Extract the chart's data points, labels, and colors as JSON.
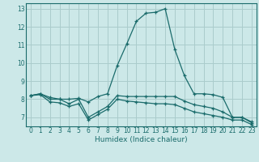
{
  "xlabel": "Humidex (Indice chaleur)",
  "bg_color": "#cce8e8",
  "grid_color": "#aacccc",
  "line_color": "#1a6b6b",
  "xlim": [
    -0.5,
    23.5
  ],
  "ylim": [
    6.5,
    13.3
  ],
  "yticks": [
    7,
    8,
    9,
    10,
    11,
    12,
    13
  ],
  "xticks": [
    0,
    1,
    2,
    3,
    4,
    5,
    6,
    7,
    8,
    9,
    10,
    11,
    12,
    13,
    14,
    15,
    16,
    17,
    18,
    19,
    20,
    21,
    22,
    23
  ],
  "line1_x": [
    0,
    1,
    2,
    3,
    4,
    5,
    6,
    7,
    8,
    9,
    10,
    11,
    12,
    13,
    14,
    15,
    16,
    17,
    18,
    19,
    20,
    21,
    22,
    23
  ],
  "line1_y": [
    8.2,
    8.3,
    8.1,
    8.0,
    8.0,
    8.05,
    7.85,
    8.15,
    8.3,
    9.85,
    11.05,
    12.3,
    12.75,
    12.8,
    13.0,
    10.75,
    9.3,
    8.3,
    8.3,
    8.25,
    8.1,
    7.0,
    7.0,
    6.7
  ],
  "line2_x": [
    0,
    1,
    2,
    3,
    4,
    5,
    6,
    7,
    8,
    9,
    10,
    11,
    12,
    13,
    14,
    15,
    16,
    17,
    18,
    19,
    20,
    21,
    22,
    23
  ],
  "line2_y": [
    8.2,
    8.3,
    8.0,
    8.0,
    7.75,
    8.0,
    7.0,
    7.3,
    7.6,
    8.2,
    8.15,
    8.15,
    8.15,
    8.15,
    8.15,
    8.15,
    7.9,
    7.7,
    7.6,
    7.5,
    7.3,
    7.0,
    7.0,
    6.75
  ],
  "line3_x": [
    0,
    1,
    2,
    3,
    4,
    5,
    6,
    7,
    8,
    9,
    10,
    11,
    12,
    13,
    14,
    15,
    16,
    17,
    18,
    19,
    20,
    21,
    22,
    23
  ],
  "line3_y": [
    8.2,
    8.25,
    7.85,
    7.8,
    7.6,
    7.75,
    6.85,
    7.15,
    7.45,
    8.0,
    7.9,
    7.85,
    7.8,
    7.75,
    7.75,
    7.7,
    7.5,
    7.3,
    7.2,
    7.1,
    7.0,
    6.85,
    6.85,
    6.6
  ],
  "tick_fontsize": 5.5,
  "xlabel_fontsize": 6.5
}
